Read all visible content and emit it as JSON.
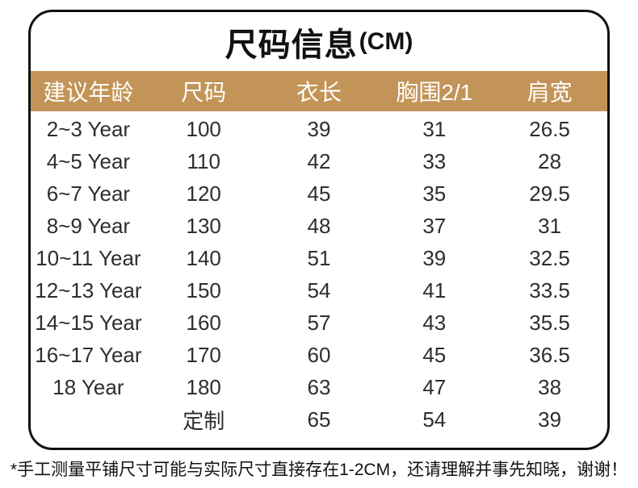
{
  "chart_data": {
    "type": "table",
    "title": "尺码信息",
    "title_unit": "(CM)",
    "columns": [
      "建议年龄",
      "尺码",
      "衣长",
      "胸围2/1",
      "肩宽"
    ],
    "rows": [
      [
        "2~3 Year",
        "100",
        "39",
        "31",
        "26.5"
      ],
      [
        "4~5 Year",
        "110",
        "42",
        "33",
        "28"
      ],
      [
        "6~7 Year",
        "120",
        "45",
        "35",
        "29.5"
      ],
      [
        "8~9 Year",
        "130",
        "48",
        "37",
        "31"
      ],
      [
        "10~11 Year",
        "140",
        "51",
        "39",
        "32.5"
      ],
      [
        "12~13 Year",
        "150",
        "54",
        "41",
        "33.5"
      ],
      [
        "14~15 Year",
        "160",
        "57",
        "43",
        "35.5"
      ],
      [
        "16~17 Year",
        "170",
        "60",
        "45",
        "36.5"
      ],
      [
        "18 Year",
        "180",
        "63",
        "47",
        "38"
      ],
      [
        "",
        "定制",
        "65",
        "54",
        "39"
      ]
    ],
    "note": "*手工测量平铺尺寸可能与实际尺寸直接存在1-2CM，还请理解并事先知晓，谢谢！"
  },
  "colors": {
    "header_bg": "#c39457",
    "header_text": "#ffffff",
    "border": "#111111",
    "title_text": "#111111",
    "body_text": "#2e2e2e",
    "note_text": "#111111"
  }
}
